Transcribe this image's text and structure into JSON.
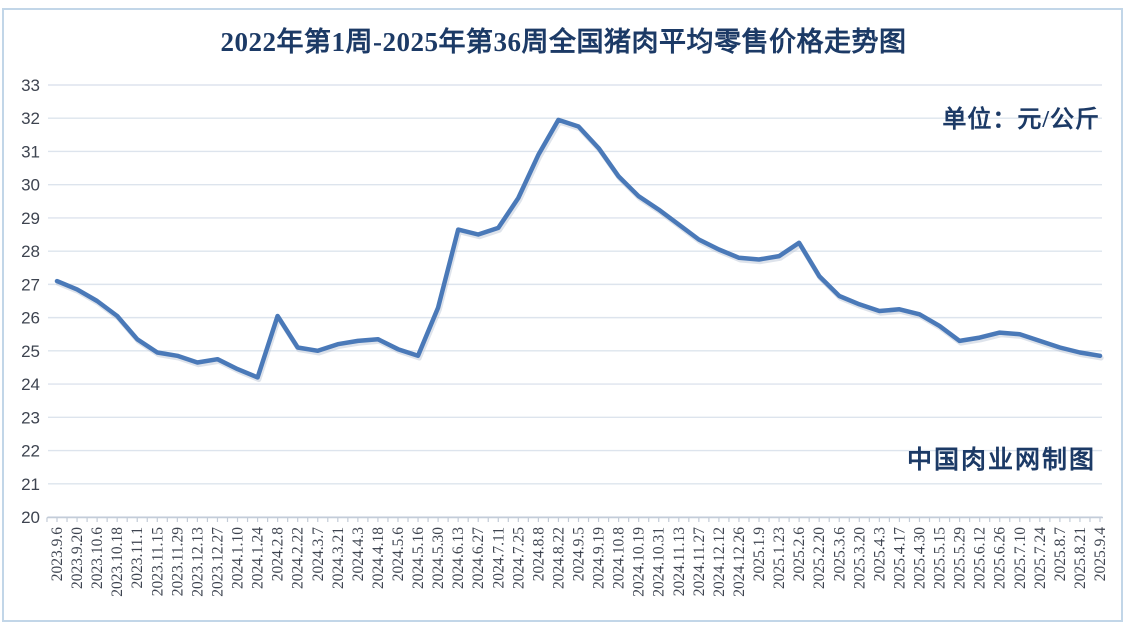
{
  "header": {
    "title": "2022年第1周-2025年第36周全国猪肉平均零售价格走势图"
  },
  "chart": {
    "unit_label": "单位：元/公斤",
    "watermark": "中国肉业网制图"
  },
  "colors": {
    "title_text": "#1c3a66",
    "axis_text": "#3e4450",
    "line": "#4a79b8",
    "line_shadow": "#b6c2d2",
    "gridline": "#dde4ed",
    "axis_line": "#c3ccd8",
    "frame_border": "#c2d6e8",
    "background": "#ffffff"
  },
  "chart_data": {
    "type": "line",
    "title": "2022年第1周-2025年第36周全国猪肉平均零售价格走势图",
    "xlabel": "",
    "ylabel": "元/公斤",
    "ylim": [
      20,
      33
    ],
    "ytick_interval": 1,
    "grid": true,
    "legend": "none",
    "categories": [
      "2023.9.6",
      "2023.9.20",
      "2023.10.6",
      "2023.10.18",
      "2023.11.1",
      "2023.11.15",
      "2023.11.29",
      "2023.12.13",
      "2023.12.27",
      "2024.1.10",
      "2024.1.24",
      "2024.2.8",
      "2024.2.22",
      "2024.3.7",
      "2024.3.21",
      "2024.4.3",
      "2024.4.18",
      "2024.5.6",
      "2024.5.16",
      "2024.5.30",
      "2024.6.13",
      "2024.6.27",
      "2024.7.11",
      "2024.7.25",
      "2024.8.8",
      "2024.8.22",
      "2024.9.5",
      "2024.9.19",
      "2024.10.8",
      "2024.10.19",
      "2024.10.31",
      "2024.11.13",
      "2024.11.27",
      "2024.12.12",
      "2024.12.26",
      "2025.1.9",
      "2025.1.23",
      "2025.2.6",
      "2025.2.20",
      "2025.3.6",
      "2025.3.20",
      "2025.4.3",
      "2025.4.17",
      "2025.4.30",
      "2025.5.15",
      "2025.5.29",
      "2025.6.12",
      "2025.6.26",
      "2025.7.10",
      "2025.7.24",
      "2025.8.7",
      "2025.8.21",
      "2025.9.4"
    ],
    "values": [
      27.1,
      26.85,
      26.5,
      26.05,
      25.35,
      24.95,
      24.85,
      24.65,
      24.75,
      24.45,
      24.2,
      26.05,
      25.1,
      25.0,
      25.2,
      25.3,
      25.35,
      25.05,
      24.85,
      26.3,
      28.65,
      28.5,
      28.7,
      29.6,
      30.9,
      31.95,
      31.75,
      31.1,
      30.25,
      29.65,
      29.25,
      28.8,
      28.35,
      28.05,
      27.8,
      27.75,
      27.85,
      28.25,
      27.25,
      26.65,
      26.4,
      26.2,
      26.25,
      26.1,
      25.75,
      25.3,
      25.4,
      25.55,
      25.5,
      25.3,
      25.1,
      24.95,
      24.85
    ]
  }
}
